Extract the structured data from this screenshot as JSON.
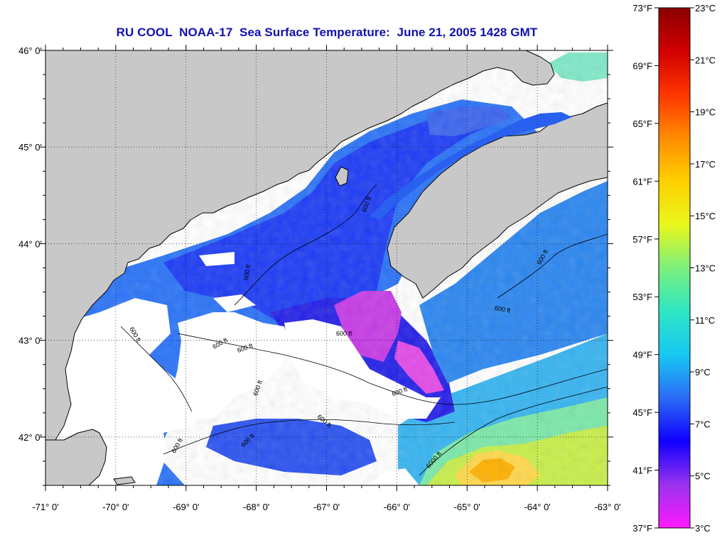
{
  "title": "RU COOL  NOAA-17  Sea Surface Temperature:  June 21, 2005 1428 GMT",
  "map": {
    "lon_range": [
      -71,
      -63
    ],
    "lat_range": [
      41.5,
      46
    ],
    "lon_labels": [
      {
        "lon": -71,
        "text": "-71° 0'"
      },
      {
        "lon": -70,
        "text": "-70° 0'"
      },
      {
        "lon": -69,
        "text": "-69° 0'"
      },
      {
        "lon": -68,
        "text": "-68° 0'"
      },
      {
        "lon": -67,
        "text": "-67° 0'"
      },
      {
        "lon": -66,
        "text": "-66° 0'"
      },
      {
        "lon": -65,
        "text": "-65° 0'"
      },
      {
        "lon": -64,
        "text": "-64° 0'"
      },
      {
        "lon": -63,
        "text": "-63° 0'"
      }
    ],
    "lat_labels": [
      {
        "lat": 46,
        "text": "46° 0'"
      },
      {
        "lat": 45,
        "text": "45° 0'"
      },
      {
        "lat": 44,
        "text": "44° 0'"
      },
      {
        "lat": 43,
        "text": "43° 0'"
      },
      {
        "lat": 42,
        "text": "42° 0'"
      }
    ],
    "grid": "dotted",
    "colors": {
      "land": "#c8c8c8",
      "cloud": "#ffffff",
      "coast": "#000000",
      "frame": "#000000"
    },
    "isobath_labels": [
      {
        "text": "600 ft",
        "lon": -66.4,
        "lat": 44.4,
        "angle": -70
      },
      {
        "text": "600 ft",
        "lon": -68.1,
        "lat": 43.7,
        "angle": -80
      },
      {
        "text": "600 ft",
        "lon": -64.5,
        "lat": 43.3,
        "angle": 10
      },
      {
        "text": "600 ft",
        "lon": -63.9,
        "lat": 43.85,
        "angle": -60
      },
      {
        "text": "600 ft",
        "lon": -69.75,
        "lat": 43.05,
        "angle": 60
      },
      {
        "text": "600 ft",
        "lon": -68.5,
        "lat": 42.95,
        "angle": -30
      },
      {
        "text": "600 ft",
        "lon": -68.15,
        "lat": 42.9,
        "angle": -20
      },
      {
        "text": "600 ft",
        "lon": -66.75,
        "lat": 43.05,
        "angle": 0
      },
      {
        "text": "600 ft",
        "lon": -67.95,
        "lat": 42.5,
        "angle": -70
      },
      {
        "text": "600 ft",
        "lon": -67.05,
        "lat": 42.15,
        "angle": 40
      },
      {
        "text": "600 ft",
        "lon": -68.1,
        "lat": 41.95,
        "angle": -45
      },
      {
        "text": "600 ft",
        "lon": -69.1,
        "lat": 41.9,
        "angle": -60
      },
      {
        "text": "600 ft",
        "lon": -65.95,
        "lat": 42.45,
        "angle": -20
      },
      {
        "text": "6000 ft",
        "lon": -65.45,
        "lat": 41.75,
        "angle": -50
      }
    ]
  },
  "colorbar": {
    "colors": [
      "#ff19ff",
      "#9a32ee",
      "#1000ff",
      "#2b6cf6",
      "#18c8f2",
      "#2ee6c4",
      "#7cf07c",
      "#e9f71b",
      "#ffd000",
      "#ff8c00",
      "#ff3500",
      "#d00000",
      "#8b0000"
    ],
    "fahrenheit_labels": [
      "73°F",
      "69°F",
      "65°F",
      "61°F",
      "57°F",
      "53°F",
      "49°F",
      "45°F",
      "41°F",
      "37°F"
    ],
    "celsius_labels": [
      "23°C",
      "21°C",
      "19°C",
      "17°C",
      "15°C",
      "13°C",
      "11°C",
      "9°C",
      "7°C",
      "5°C",
      "3°C"
    ],
    "fahrenheit_range": [
      37,
      73
    ],
    "celsius_range": [
      3,
      23
    ]
  }
}
